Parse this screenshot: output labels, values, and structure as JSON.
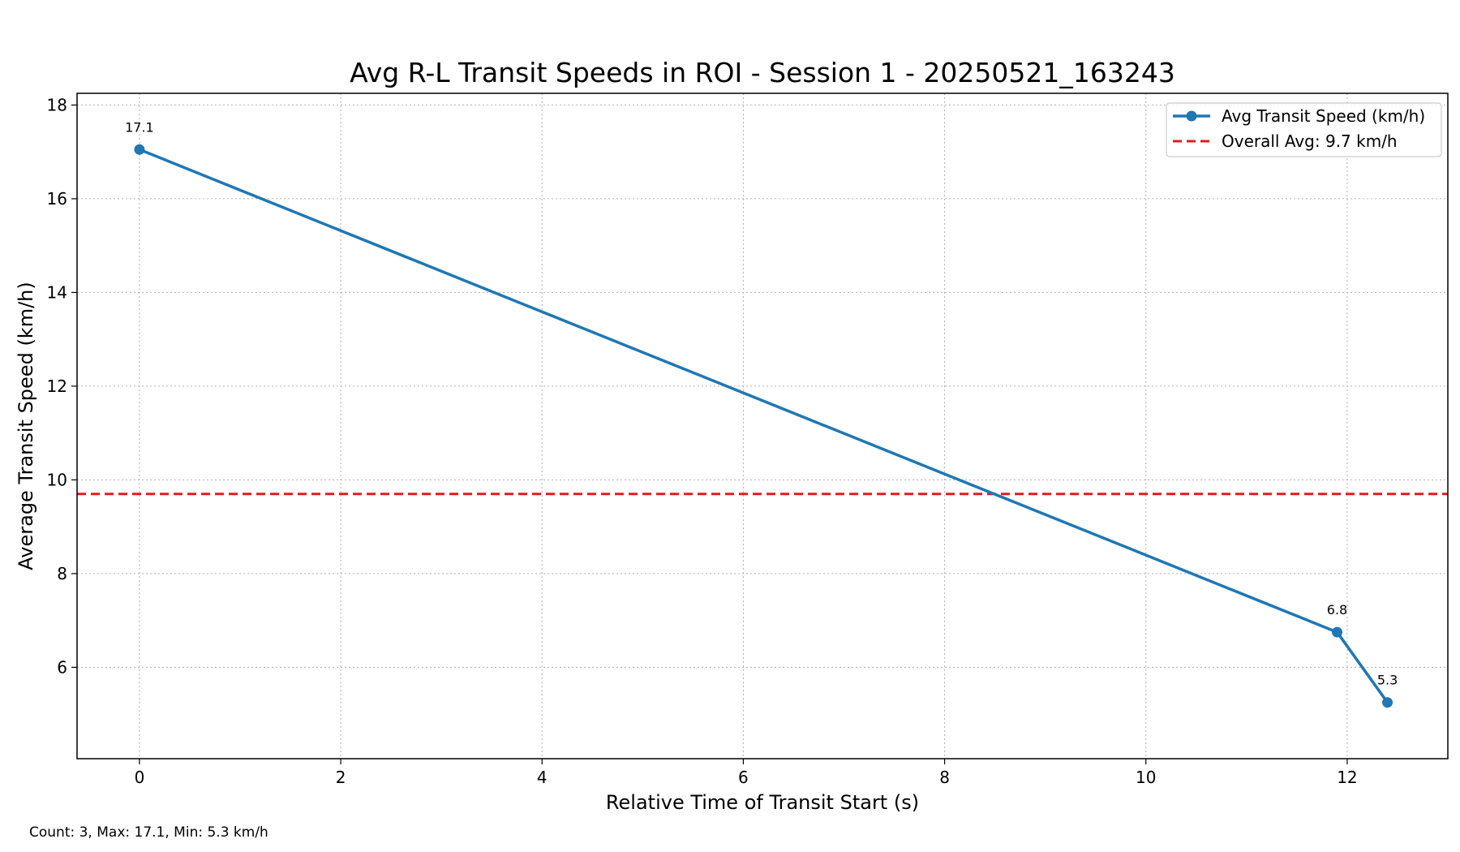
{
  "footer": {
    "stats": "Count: 3, Max: 17.1, Min: 5.3 km/h"
  },
  "chart_data": {
    "type": "line",
    "title": "Avg R-L Transit Speeds in ROI - Session 1 - 20250521_163243",
    "xlabel": "Relative Time of Transit Start (s)",
    "ylabel": "Average Transit Speed (km/h)",
    "xlim": [
      -0.62,
      13.0
    ],
    "ylim": [
      4.05,
      18.25
    ],
    "xticks": [
      0,
      2,
      4,
      6,
      8,
      10,
      12
    ],
    "yticks": [
      6,
      8,
      10,
      12,
      14,
      16,
      18
    ],
    "grid": true,
    "legend_position": "top-right",
    "series": [
      {
        "name": "Avg Transit Speed (km/h)",
        "color": "#1f77b4",
        "x": [
          0,
          11.9,
          12.4
        ],
        "y": [
          17.05,
          6.75,
          5.25
        ],
        "labels": [
          "17.1",
          "6.8",
          "5.3"
        ]
      }
    ],
    "reference_line": {
      "name": "Overall Avg: 9.7 km/h",
      "value": 9.7,
      "color": "#e41a1c",
      "style": "dashed"
    }
  }
}
